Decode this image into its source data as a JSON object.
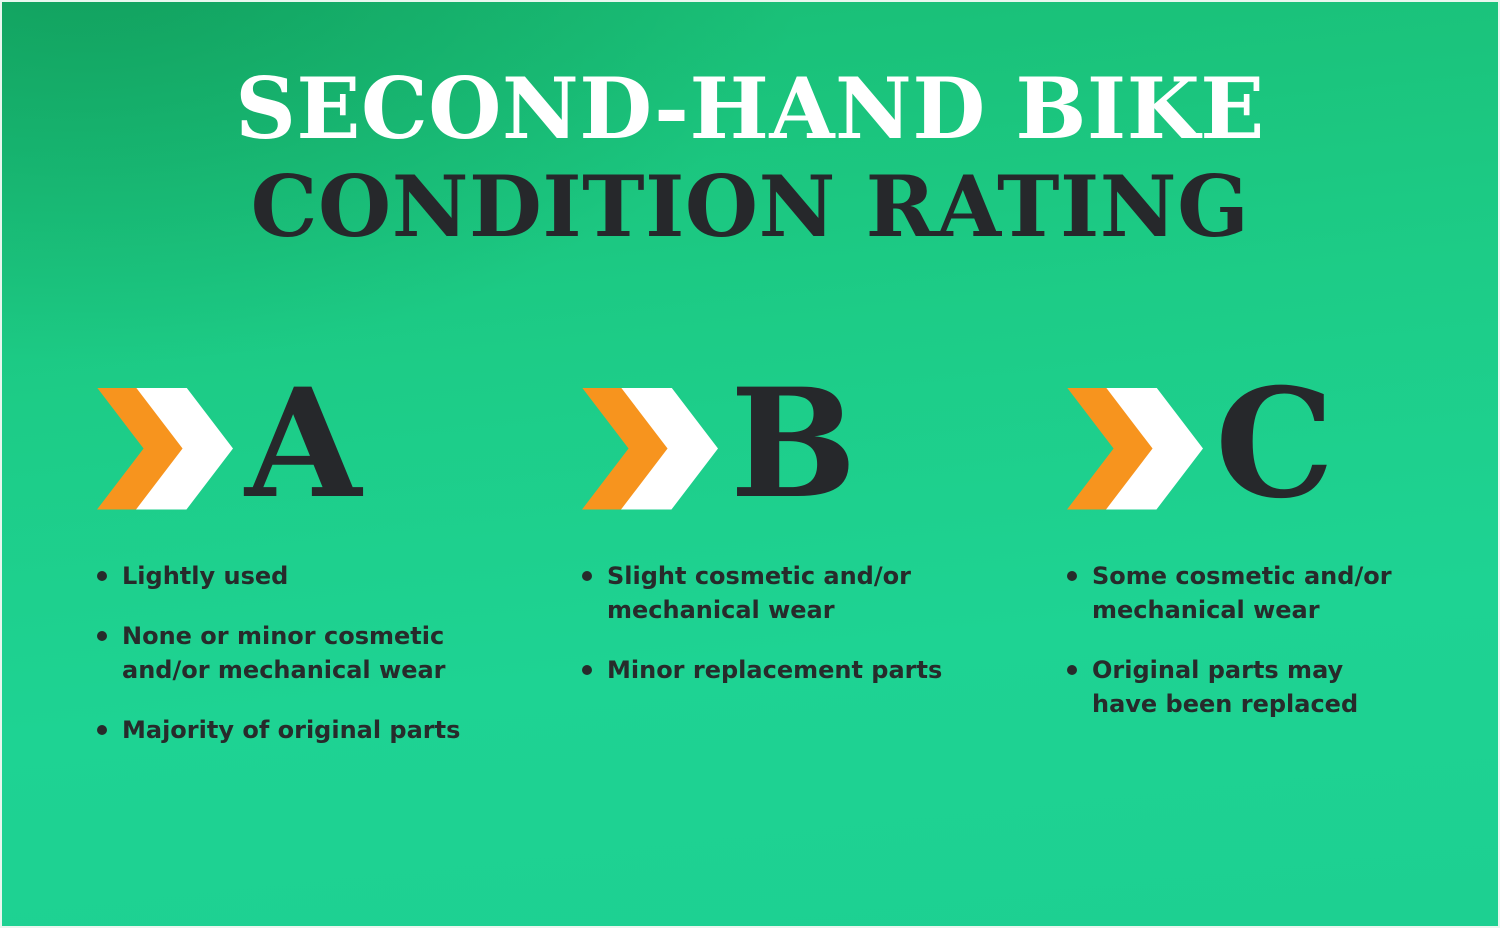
{
  "infographic": {
    "title_line1": "SECOND-HAND BIKE",
    "title_line2": "CONDITION RATING"
  },
  "colors": {
    "chevron_orange": "#F7941E",
    "chevron_white": "#FFFFFF",
    "title_light": "#FFFFFF",
    "title_dark": "#26282B",
    "text_dark": "#272B2B",
    "background_green_dark": "#12B06A",
    "background_green": "#1CC87E",
    "background_mint": "#1ED392"
  },
  "ratings": [
    {
      "grade": "A",
      "icon": "double-chevron-icon",
      "points": [
        "Lightly used",
        "None or minor cosmetic\nand/or mechanical wear",
        "Majority of original parts"
      ]
    },
    {
      "grade": "B",
      "icon": "double-chevron-icon",
      "points": [
        "Slight cosmetic and/or\nmechanical wear",
        "Minor replacement parts"
      ]
    },
    {
      "grade": "C",
      "icon": "double-chevron-icon",
      "points": [
        "Some cosmetic and/or\nmechanical wear",
        "Original parts may\nhave been replaced"
      ]
    }
  ]
}
